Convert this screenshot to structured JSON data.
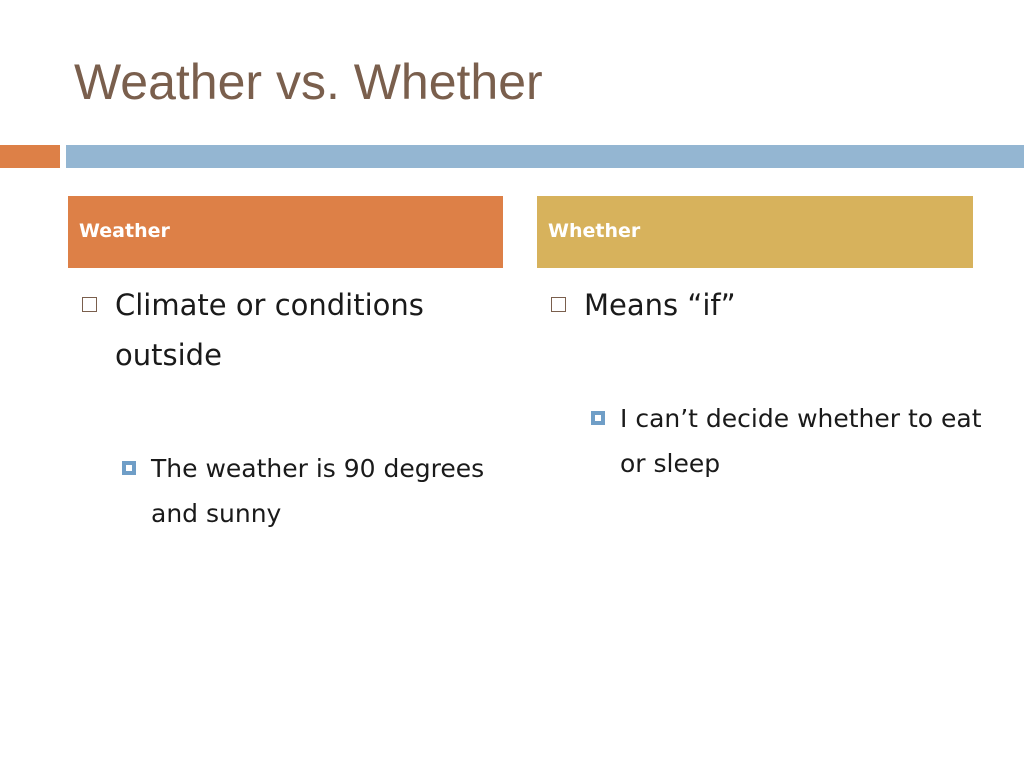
{
  "slide": {
    "title": "Weather vs. Whether"
  },
  "colors": {
    "title": "#7a5f4d",
    "accent_left": "#dd8047",
    "accent_right": "#94b6d2",
    "header_left": "#dd8047",
    "header_right": "#d7b25c"
  },
  "columns": [
    {
      "header": "Weather",
      "bullets": [
        {
          "text": "Climate or conditions outside",
          "sub": [
            "The weather is 90 degrees and sunny"
          ]
        }
      ]
    },
    {
      "header": "Whether",
      "bullets": [
        {
          "text": "Means “if”",
          "sub": [
            "I can’t decide whether to eat or sleep"
          ]
        }
      ]
    }
  ]
}
